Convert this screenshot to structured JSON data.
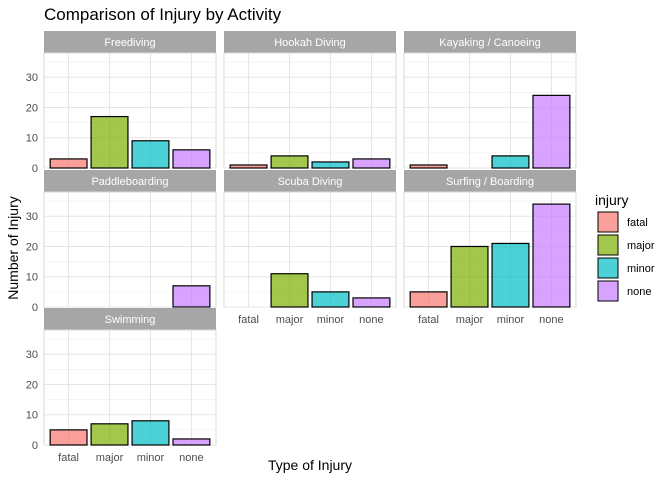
{
  "chart_data": {
    "type": "bar",
    "title": "Comparison of Injury by Activity",
    "xlabel": "Type of Injury",
    "ylabel": "Number of Injury",
    "ylim": [
      0,
      38
    ],
    "yticks": [
      0,
      10,
      20,
      30
    ],
    "categories": [
      "fatal",
      "major",
      "minor",
      "none"
    ],
    "legend": {
      "title": "injury",
      "position": "right",
      "items": [
        "fatal",
        "major",
        "minor",
        "none"
      ]
    },
    "colors": {
      "fatal": "#F8766D",
      "major": "#7CAE00",
      "minor": "#00BFC4",
      "none": "#C77CFF",
      "strip": "#A6A6A6",
      "grid": "#E5E5E5"
    },
    "grid": true,
    "panels": [
      {
        "name": "Freediving",
        "values": [
          3,
          17,
          9,
          6
        ]
      },
      {
        "name": "Hookah Diving",
        "values": [
          1,
          4,
          2,
          3
        ]
      },
      {
        "name": "Kayaking / Canoeing",
        "values": [
          1,
          0,
          4,
          24
        ]
      },
      {
        "name": "Paddleboarding",
        "values": [
          0,
          0,
          0,
          7
        ]
      },
      {
        "name": "Scuba Diving",
        "values": [
          0,
          11,
          5,
          3
        ]
      },
      {
        "name": "Surfing / Boarding",
        "values": [
          5,
          20,
          21,
          34
        ]
      },
      {
        "name": "Swimming",
        "values": [
          5,
          7,
          8,
          2
        ]
      }
    ]
  }
}
